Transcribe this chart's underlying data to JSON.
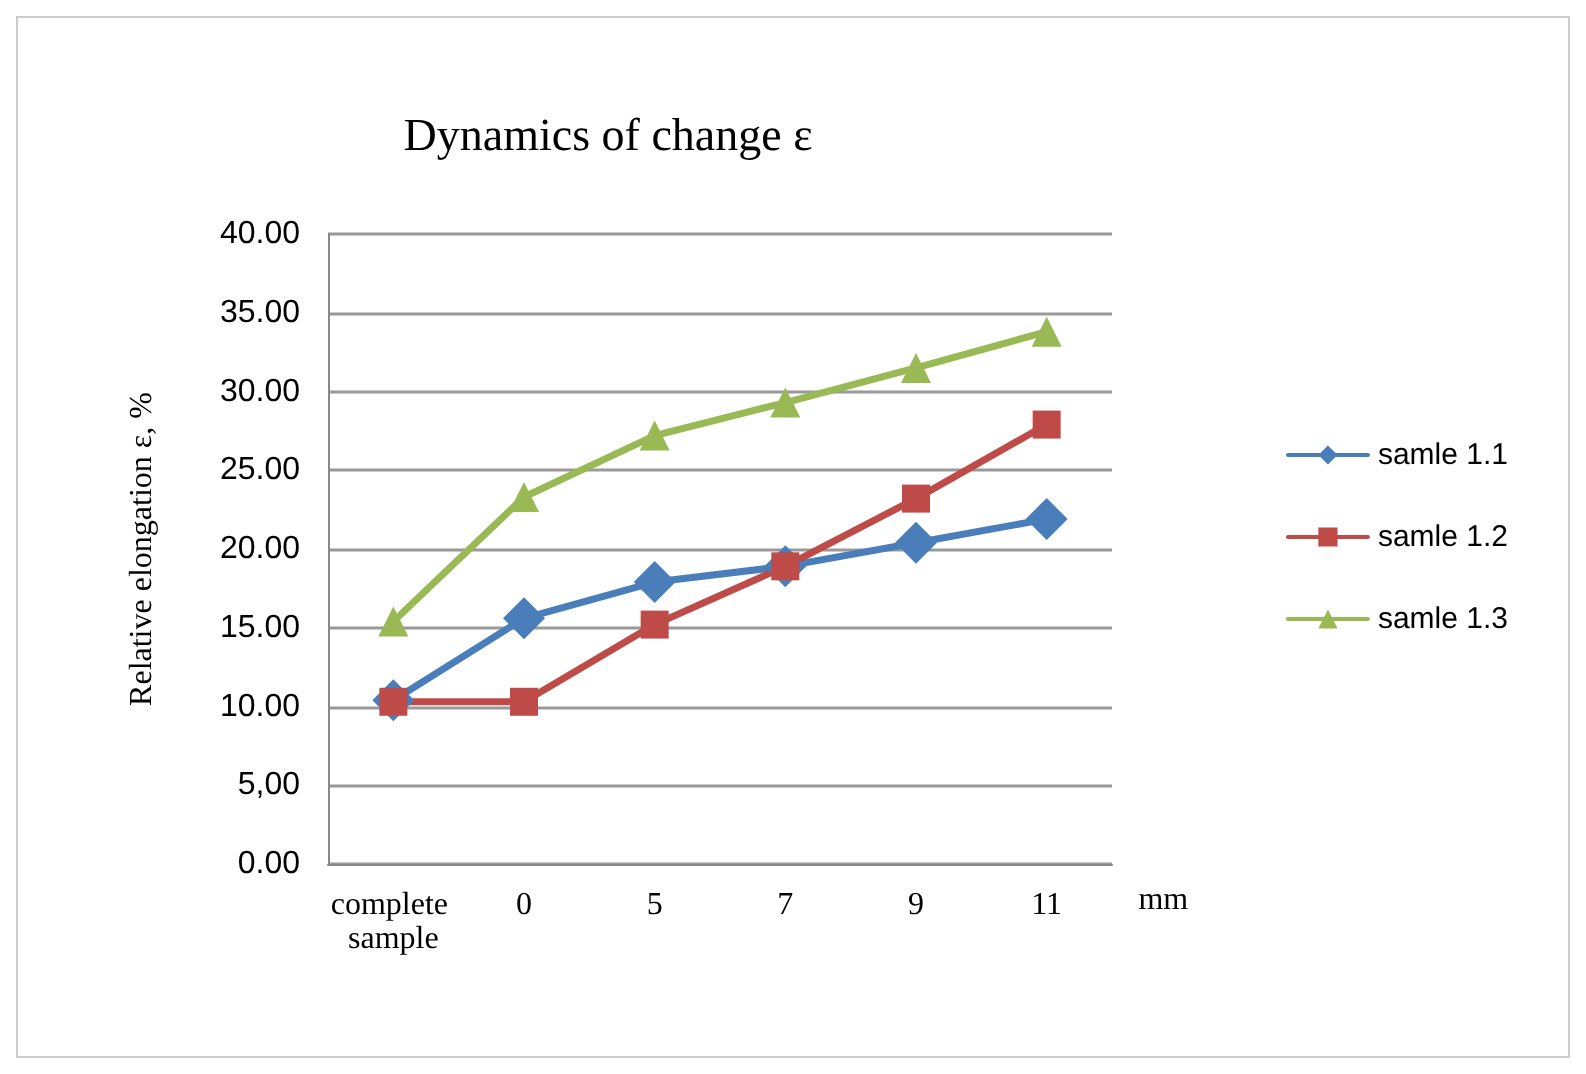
{
  "chart_data": {
    "type": "line",
    "title": "Dynamics of change ε",
    "xlabel": "mm",
    "ylabel": "Relative elongation ε, %",
    "categories": [
      "complete sample",
      "0",
      "5",
      "7",
      "9",
      "11"
    ],
    "series": [
      {
        "name": "samle 1.1",
        "color": "#4a7ebb",
        "marker": "diamond",
        "values": [
          10.4,
          15.6,
          17.9,
          18.9,
          20.4,
          21.9
        ]
      },
      {
        "name": "samle 1.2",
        "color": "#be4b48",
        "marker": "square",
        "values": [
          10.3,
          10.3,
          15.2,
          18.9,
          23.2,
          27.9
        ]
      },
      {
        "name": "samle 1.3",
        "color": "#98b954",
        "marker": "triangle",
        "values": [
          15.4,
          23.3,
          27.2,
          29.3,
          31.5,
          33.8
        ]
      }
    ],
    "ylim": [
      0,
      40
    ],
    "yticks": [
      {
        "value": 0,
        "label": "0.00"
      },
      {
        "value": 5,
        "label": "5,00"
      },
      {
        "value": 10,
        "label": "10.00"
      },
      {
        "value": 15,
        "label": "15.00"
      },
      {
        "value": 20,
        "label": "20.00"
      },
      {
        "value": 25,
        "label": "25.00"
      },
      {
        "value": 30,
        "label": "30.00"
      },
      {
        "value": 35,
        "label": "35.00"
      },
      {
        "value": 40,
        "label": "40.00"
      }
    ],
    "grid": "y",
    "legend": "right",
    "line_style": "solid"
  }
}
